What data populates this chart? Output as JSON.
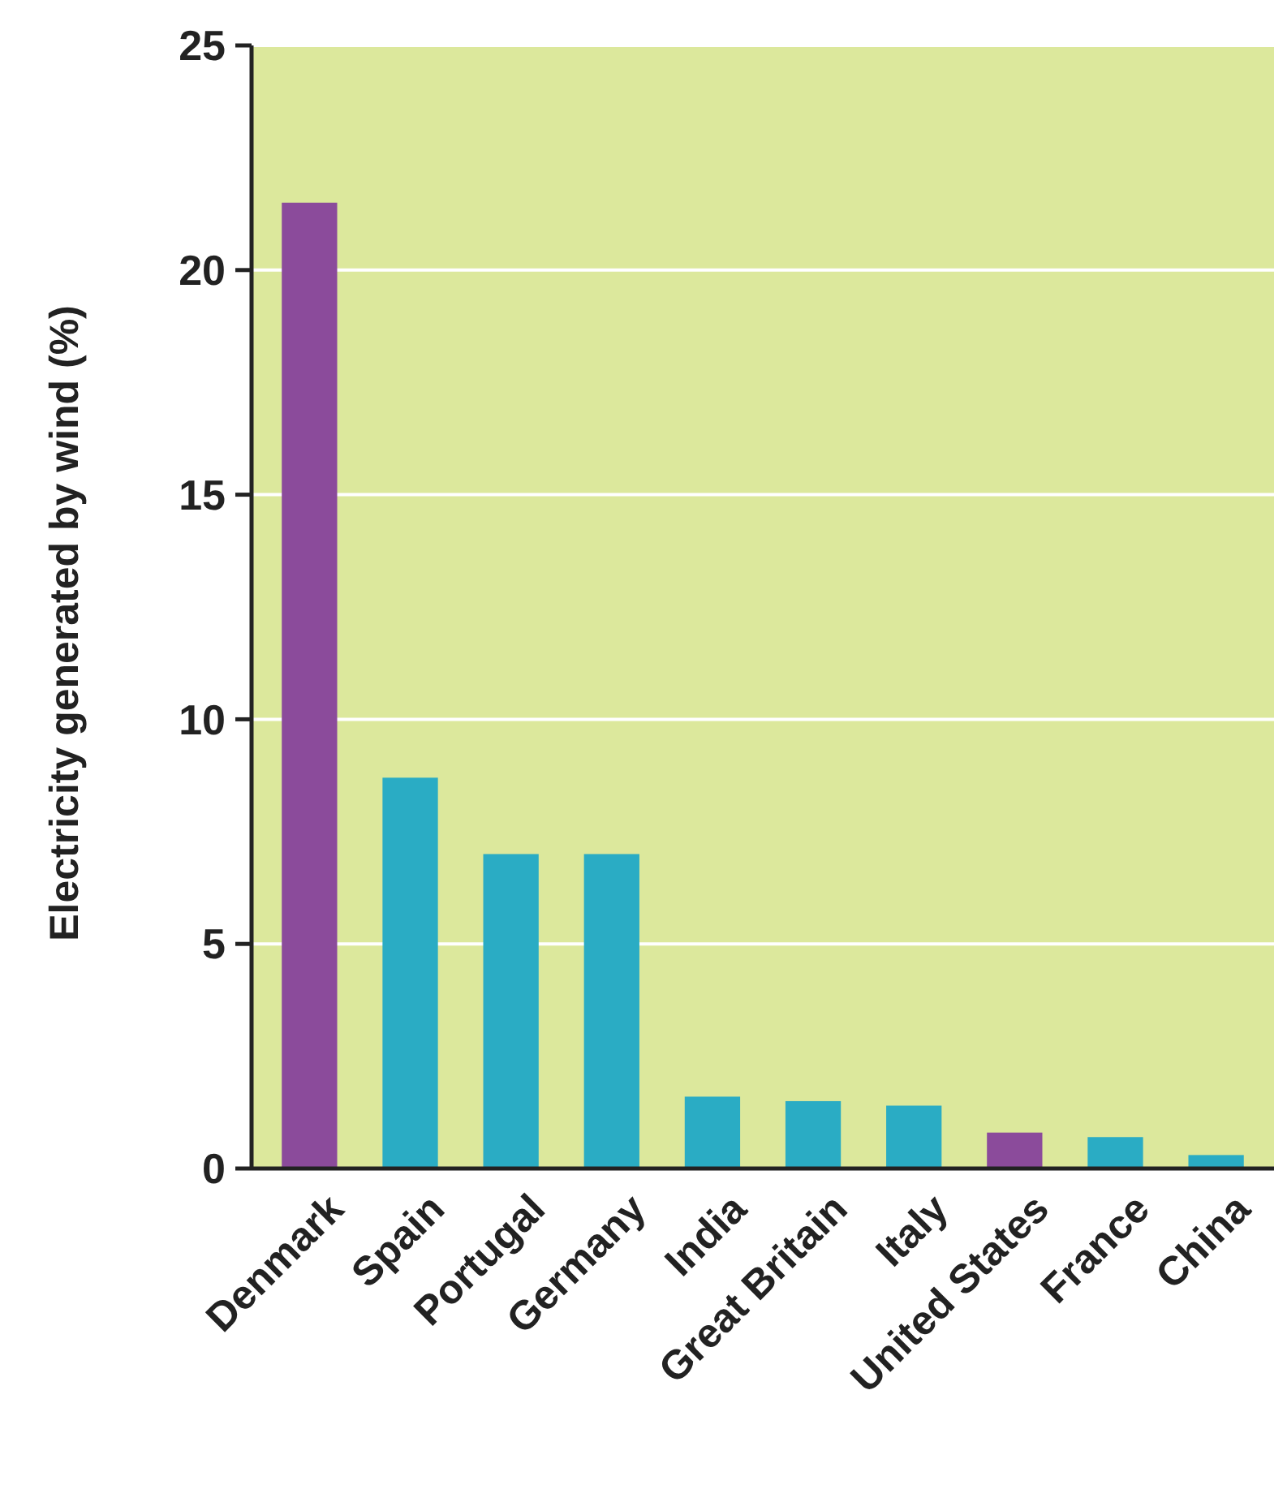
{
  "chart_data": {
    "type": "bar",
    "ylabel": "Electricity generated by wind (%)",
    "categories": [
      "Denmark",
      "Spain",
      "Portugal",
      "Germany",
      "India",
      "Great Britain",
      "Italy",
      "United States",
      "France",
      "China"
    ],
    "values": [
      21.5,
      8.7,
      7.0,
      7.0,
      1.6,
      1.5,
      1.4,
      0.8,
      0.7,
      0.3
    ],
    "colors": [
      "#8b4b9b",
      "#2aacc4",
      "#2aacc4",
      "#2aacc4",
      "#2aacc4",
      "#2aacc4",
      "#2aacc4",
      "#8b4b9b",
      "#2aacc4",
      "#2aacc4"
    ],
    "ylim": [
      0,
      25
    ],
    "yticks": [
      0,
      5,
      10,
      15,
      20,
      25
    ],
    "grid": "y"
  }
}
